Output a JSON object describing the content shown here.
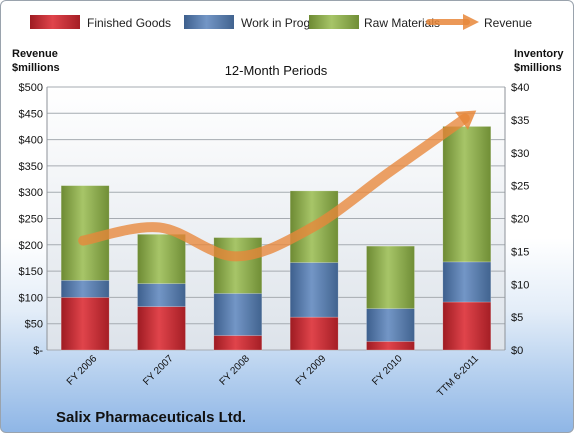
{
  "chart_data": {
    "type": "bar",
    "subtitle": "12-Month Periods",
    "company": "Salix Pharmaceuticals Ltd.",
    "categories": [
      "FY 2006",
      "FY 2007",
      "FY 2008",
      "FY 2009",
      "FY 2010",
      "TTM 6-2011"
    ],
    "left_axis": {
      "title_lines": [
        "Revenue",
        "$millions"
      ],
      "ylim": [
        0,
        500
      ],
      "ticks": [
        {
          "v": 0,
          "label": "$-"
        },
        {
          "v": 50,
          "label": "$50"
        },
        {
          "v": 100,
          "label": "$100"
        },
        {
          "v": 150,
          "label": "$150"
        },
        {
          "v": 200,
          "label": "$200"
        },
        {
          "v": 250,
          "label": "$250"
        },
        {
          "v": 300,
          "label": "$300"
        },
        {
          "v": 350,
          "label": "$350"
        },
        {
          "v": 400,
          "label": "$400"
        },
        {
          "v": 450,
          "label": "$450"
        },
        {
          "v": 500,
          "label": "$500"
        }
      ]
    },
    "right_axis": {
      "title_lines": [
        "Inventory",
        "$millions"
      ],
      "ylim": [
        0,
        40
      ],
      "ticks": [
        {
          "v": 0,
          "label": "$0"
        },
        {
          "v": 5,
          "label": "$5"
        },
        {
          "v": 10,
          "label": "$10"
        },
        {
          "v": 15,
          "label": "$15"
        },
        {
          "v": 20,
          "label": "$20"
        },
        {
          "v": 25,
          "label": "$25"
        },
        {
          "v": 30,
          "label": "$30"
        },
        {
          "v": 35,
          "label": "$35"
        },
        {
          "v": 40,
          "label": "$40"
        }
      ]
    },
    "series": [
      {
        "name": "Finished Goods",
        "axis": "right",
        "color": "#c0262d",
        "values": [
          8.0,
          6.6,
          2.2,
          5.0,
          1.3,
          7.3
        ]
      },
      {
        "name": "Work in Progress",
        "axis": "right",
        "color": "#4f77ad",
        "values": [
          2.6,
          3.5,
          6.4,
          8.3,
          5.0,
          6.1
        ]
      },
      {
        "name": "Raw Materials",
        "axis": "right",
        "color": "#8aab47",
        "values": [
          14.4,
          7.5,
          8.5,
          10.9,
          9.5,
          20.6
        ]
      }
    ],
    "line_series": {
      "name": "Revenue",
      "axis": "left",
      "color": "#e8873a",
      "values": [
        208,
        233,
        178,
        233,
        337,
        440
      ]
    },
    "grid": true,
    "legend_position": "top"
  }
}
